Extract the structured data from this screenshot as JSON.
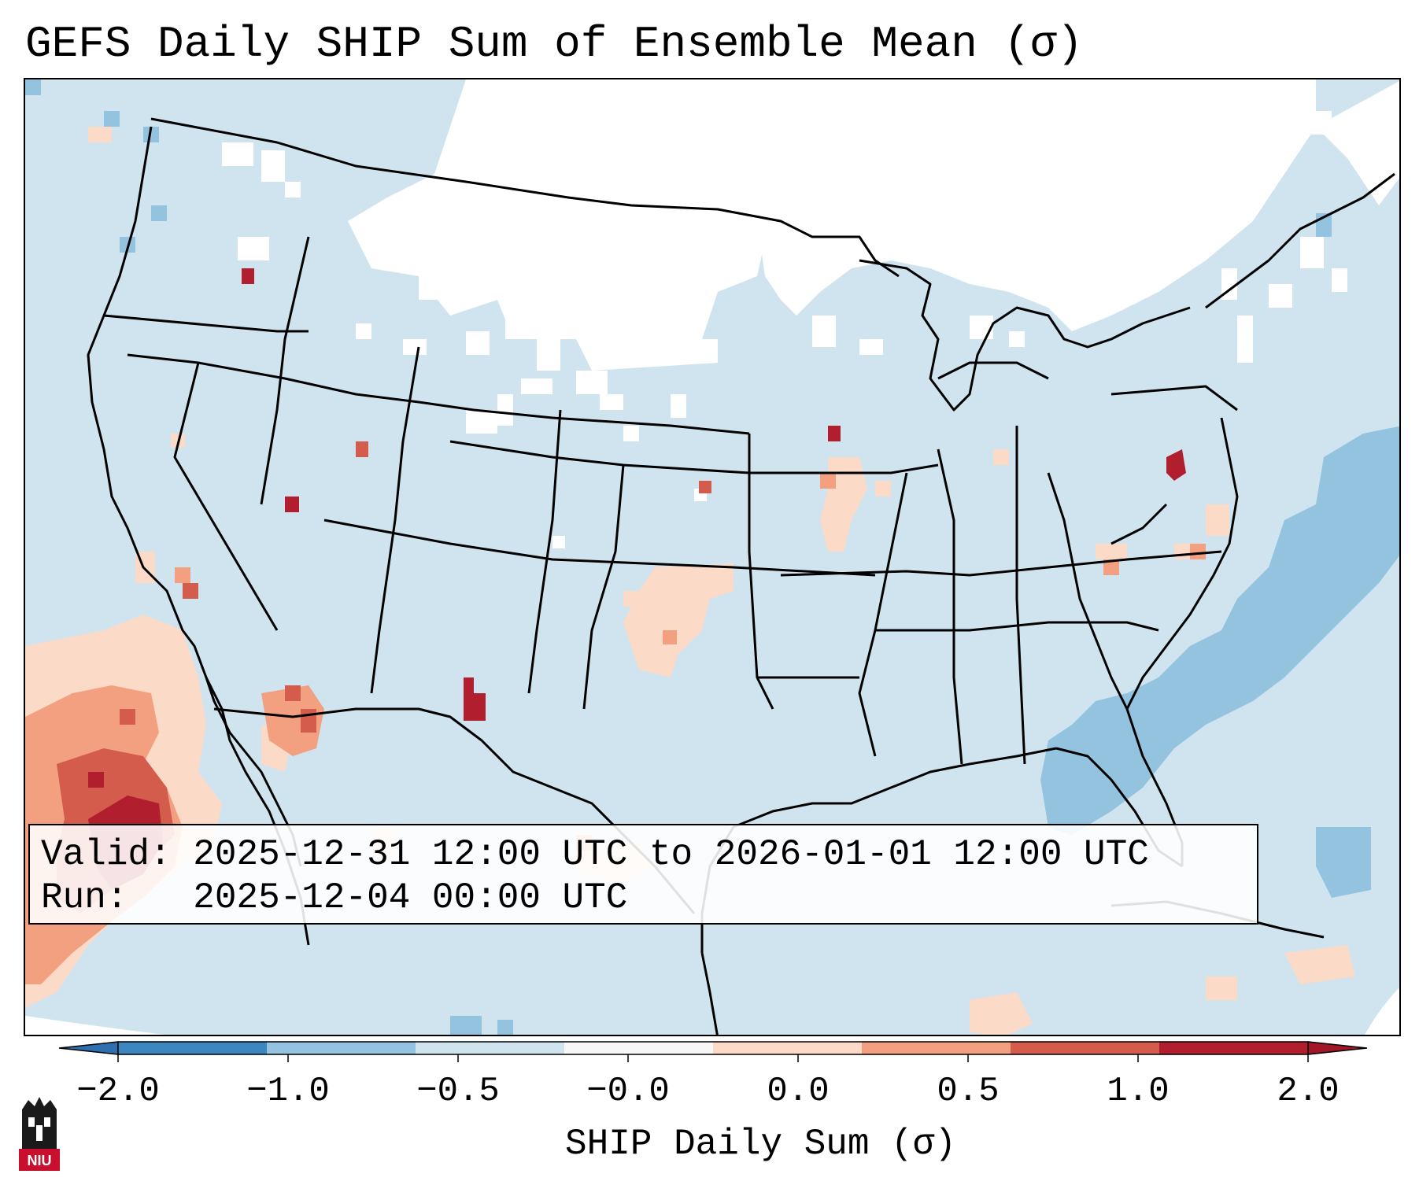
{
  "title": "GEFS Daily SHIP Sum of Ensemble Mean (σ)",
  "info": {
    "valid_label": "Valid:",
    "valid_value": "2025-12-31 12:00 UTC to 2026-01-01 12:00 UTC",
    "run_label": "Run:",
    "run_value": "2025-12-04 00:00 UTC"
  },
  "colorbar": {
    "label": "SHIP Daily Sum (σ)",
    "ticks": [
      "−2.0",
      "−1.0",
      "−0.5",
      "−0.0",
      "0.0",
      "0.5",
      "1.0",
      "2.0"
    ],
    "colors": [
      "#3d86c0",
      "#93c3df",
      "#d0e4f0",
      "#f7f7f7",
      "#fcdac8",
      "#f2a07f",
      "#d35c4c",
      "#b11e2e"
    ],
    "extend_low_color": "#2e6fae",
    "extend_high_color": "#a3162a"
  },
  "colors": {
    "ocean_land_base": "#d0e4f0",
    "white_cells": "#ffffff",
    "border": "#000000"
  },
  "logo": {
    "text": "NIU",
    "icon": "university-logo-icon"
  }
}
